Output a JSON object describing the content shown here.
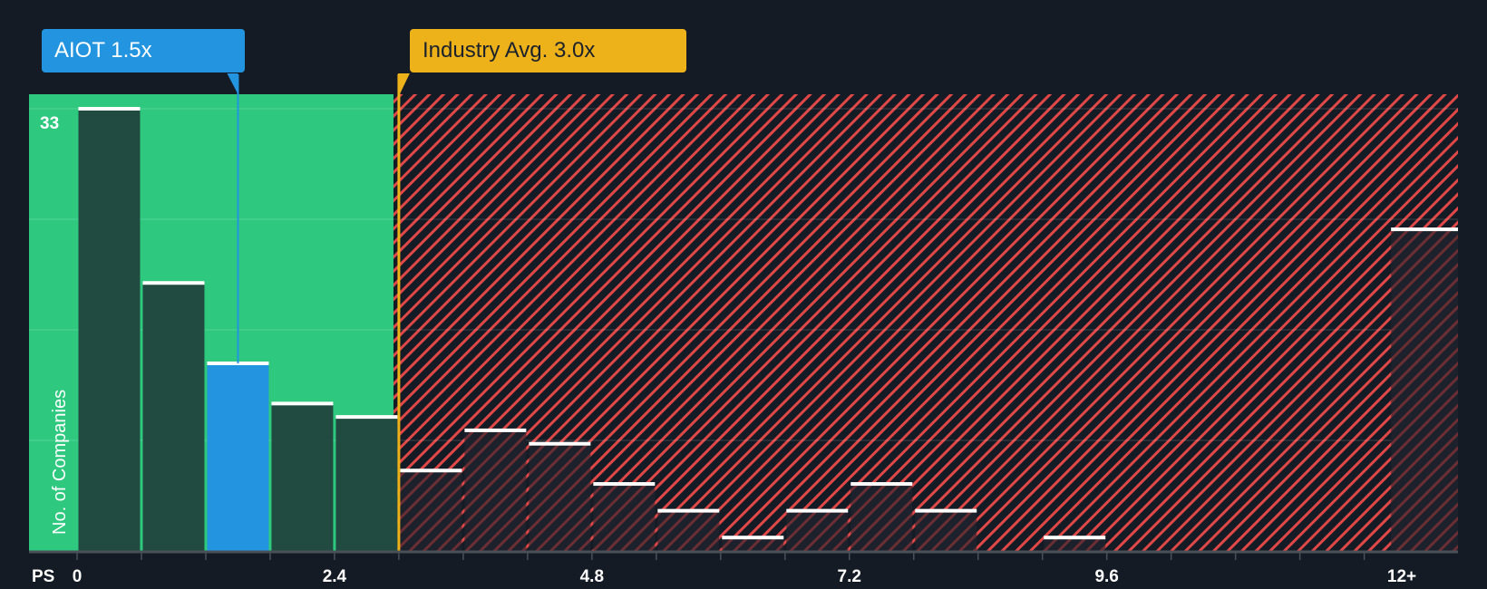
{
  "chart_data": {
    "type": "bar",
    "title": "",
    "xlabel": "PS",
    "ylabel": "No. of Companies",
    "ylim": [
      0,
      33
    ],
    "y_max_label": "33",
    "x_tick_labels": [
      "0",
      "2.4",
      "4.8",
      "7.2",
      "9.6",
      "12+"
    ],
    "x_tick_values": [
      0,
      2.4,
      4.8,
      7.2,
      9.6,
      12
    ],
    "bin_width": 0.6,
    "categories": [
      "0-0.6",
      "0.6-1.2",
      "1.2-1.8",
      "1.8-2.4",
      "2.4-3.0",
      "3.0-3.6",
      "3.6-4.2",
      "4.2-4.8",
      "4.8-5.4",
      "5.4-6.0",
      "6.0-6.6",
      "6.6-7.2",
      "7.2-7.8",
      "7.8-8.4",
      "8.4-9.0",
      "9.0-9.6",
      "9.6-10.2",
      "10.2-10.8",
      "10.8-11.4",
      "11.4-12.0",
      "12+"
    ],
    "values": [
      33,
      20,
      14,
      11,
      10,
      6,
      9,
      8,
      5,
      3,
      1,
      3,
      5,
      3,
      0,
      1,
      0,
      0,
      0,
      0,
      24
    ],
    "highlight_bin_index": 2,
    "company": {
      "ticker": "AIOT",
      "value": 1.5,
      "label": "AIOT 1.5x"
    },
    "industry_avg": {
      "value": 3.0,
      "label": "Industry Avg. 3.0x"
    },
    "grid": true,
    "legend": "none"
  },
  "colors": {
    "background": "#151b24",
    "below_avg_zone": "#2ec97f",
    "bar_fill": "#214a40",
    "highlight_bar": "#2394e0",
    "above_avg_hatch": "#e04848",
    "above_bar_fill": "#1c212b",
    "industry_line": "#edb11a",
    "bar_cap": "#ffffff",
    "axis": "#4a5058"
  }
}
